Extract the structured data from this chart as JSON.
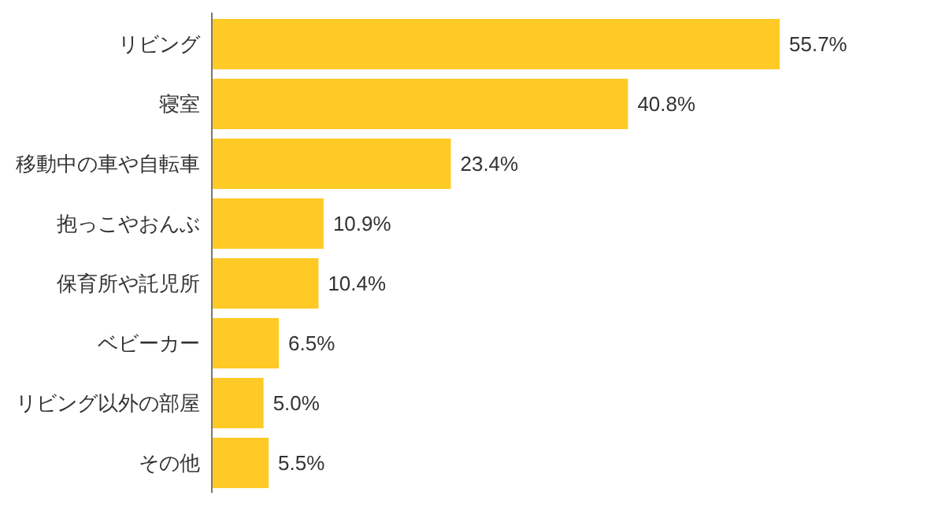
{
  "chart_data": {
    "type": "bar",
    "orientation": "horizontal",
    "categories": [
      "リビング",
      "寝室",
      "移動中の車や自転車",
      "抱っこやおんぶ",
      "保育所や託児所",
      "ベビーカー",
      "リビング以外の部屋",
      "その他"
    ],
    "values": [
      55.7,
      40.8,
      23.4,
      10.9,
      10.4,
      6.5,
      5.0,
      5.5
    ],
    "value_labels": [
      "55.7%",
      "40.8%",
      "23.4%",
      "10.9%",
      "10.4%",
      "6.5%",
      "5.0%",
      "5.5%"
    ],
    "color": "#ffc926",
    "grid": false,
    "tick_labels": "y"
  }
}
